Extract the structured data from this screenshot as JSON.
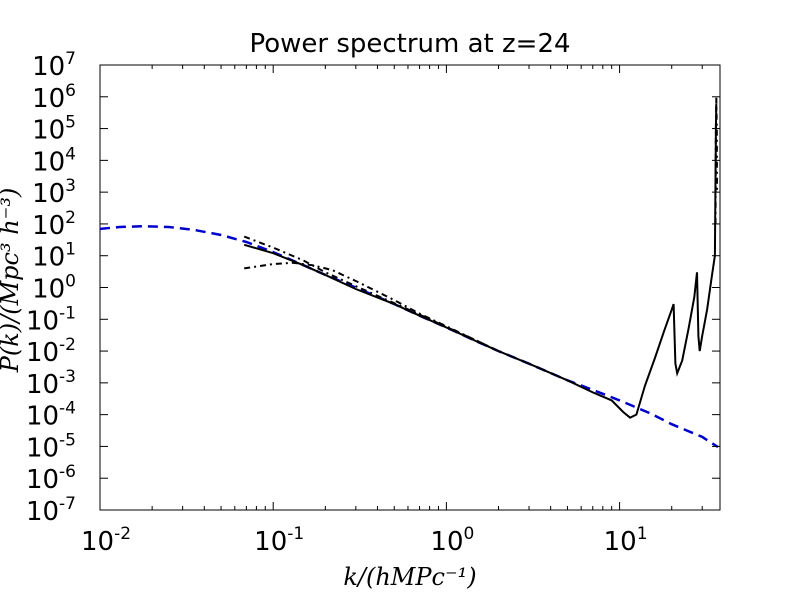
{
  "chart_data": {
    "type": "line",
    "title": "Power spectrum at z=24",
    "xlabel": "k/(hMPc⁻¹)",
    "ylabel": "P(k)/(Mpc³ h⁻³)",
    "xscale": "log",
    "yscale": "log",
    "xlim": [
      0.01,
      38
    ],
    "ylim": [
      1e-07,
      10000000.0
    ],
    "grid": false,
    "x_ticks": [
      {
        "base": "10",
        "exp": "-2",
        "value": 0.01
      },
      {
        "base": "10",
        "exp": "-1",
        "value": 0.1
      },
      {
        "base": "10",
        "exp": "0",
        "value": 1
      },
      {
        "base": "10",
        "exp": "1",
        "value": 10
      }
    ],
    "y_ticks": [
      {
        "base": "10",
        "exp": "7",
        "value": 10000000.0
      },
      {
        "base": "10",
        "exp": "6",
        "value": 1000000.0
      },
      {
        "base": "10",
        "exp": "5",
        "value": 100000.0
      },
      {
        "base": "10",
        "exp": "4",
        "value": 10000.0
      },
      {
        "base": "10",
        "exp": "3",
        "value": 1000.0
      },
      {
        "base": "10",
        "exp": "2",
        "value": 100.0
      },
      {
        "base": "10",
        "exp": "1",
        "value": 10.0
      },
      {
        "base": "10",
        "exp": "0",
        "value": 1
      },
      {
        "base": "10",
        "exp": "-1",
        "value": 0.1
      },
      {
        "base": "10",
        "exp": "-2",
        "value": 0.01
      },
      {
        "base": "10",
        "exp": "-3",
        "value": 0.001
      },
      {
        "base": "10",
        "exp": "-4",
        "value": 0.0001
      },
      {
        "base": "10",
        "exp": "-5",
        "value": 1e-05
      },
      {
        "base": "10",
        "exp": "-6",
        "value": 1e-06
      },
      {
        "base": "10",
        "exp": "-7",
        "value": 1e-07
      }
    ],
    "series": [
      {
        "style": "dashed",
        "color": "#0000cc",
        "points": [
          [
            0.01,
            70
          ],
          [
            0.013,
            80
          ],
          [
            0.018,
            85
          ],
          [
            0.025,
            80
          ],
          [
            0.035,
            65
          ],
          [
            0.05,
            45
          ],
          [
            0.07,
            27
          ],
          [
            0.1,
            13
          ],
          [
            0.15,
            5
          ],
          [
            0.2,
            2.5
          ],
          [
            0.3,
            1
          ],
          [
            0.5,
            0.3
          ],
          [
            0.7,
            0.13
          ],
          [
            1,
            0.055
          ],
          [
            1.5,
            0.02
          ],
          [
            2,
            0.01
          ],
          [
            3,
            0.004
          ],
          [
            5,
            0.0012
          ],
          [
            7,
            0.0006
          ],
          [
            10,
            0.00028
          ],
          [
            15,
            0.00011
          ],
          [
            20,
            5e-05
          ],
          [
            30,
            2e-05
          ],
          [
            37,
            9.5e-06
          ]
        ]
      },
      {
        "style": "solid",
        "color": "#000000",
        "points": [
          [
            0.068,
            22
          ],
          [
            0.1,
            12
          ],
          [
            0.15,
            5
          ],
          [
            0.2,
            2.5
          ],
          [
            0.3,
            0.9
          ],
          [
            0.5,
            0.3
          ],
          [
            0.7,
            0.13
          ],
          [
            1,
            0.055
          ],
          [
            1.5,
            0.02
          ],
          [
            2,
            0.01
          ],
          [
            3,
            0.004
          ],
          [
            5,
            0.0012
          ],
          [
            7,
            0.0005
          ],
          [
            9,
            0.00028
          ],
          [
            10.5,
            0.00012
          ],
          [
            11.5,
            8e-05
          ],
          [
            12.5,
            0.0001
          ],
          [
            14,
            0.0008
          ],
          [
            16,
            0.006
          ],
          [
            18,
            0.04
          ],
          [
            20,
            0.2
          ],
          [
            20.5,
            0.3
          ],
          [
            21,
            0.004
          ],
          [
            21.5,
            0.002
          ],
          [
            23,
            0.005
          ],
          [
            25,
            0.05
          ],
          [
            27,
            0.5
          ],
          [
            28,
            3
          ],
          [
            28.5,
            0.03
          ],
          [
            29,
            0.01
          ],
          [
            30,
            0.03
          ],
          [
            32,
            0.2
          ],
          [
            34,
            2
          ],
          [
            35.5,
            10
          ],
          [
            36,
            100000
          ],
          [
            36.2,
            600000
          ]
        ]
      },
      {
        "style": "dashdot",
        "color": "#000000",
        "points": [
          [
            0.068,
            40
          ],
          [
            0.1,
            18
          ],
          [
            0.15,
            7
          ],
          [
            0.2,
            3
          ],
          [
            0.3,
            1.1
          ],
          [
            0.5,
            0.32
          ],
          [
            0.7,
            0.14
          ],
          [
            1,
            0.057
          ],
          [
            1.5,
            0.021
          ],
          [
            2,
            0.01
          ]
        ]
      },
      {
        "style": "dashdot",
        "color": "#000000",
        "points": [
          [
            0.068,
            4
          ],
          [
            0.1,
            5.5
          ],
          [
            0.13,
            6
          ],
          [
            0.17,
            5
          ],
          [
            0.22,
            3.5
          ],
          [
            0.3,
            1.6
          ],
          [
            0.5,
            0.4
          ],
          [
            0.7,
            0.15
          ],
          [
            1,
            0.06
          ],
          [
            1.5,
            0.021
          ],
          [
            2,
            0.01
          ]
        ]
      },
      {
        "style": "dashdot",
        "color": "#000000",
        "points": [
          [
            35.8,
            100
          ],
          [
            36,
            100000
          ],
          [
            36.2,
            1000000
          ],
          [
            36.4,
            100000
          ],
          [
            36.5,
            1000
          ]
        ]
      }
    ]
  }
}
